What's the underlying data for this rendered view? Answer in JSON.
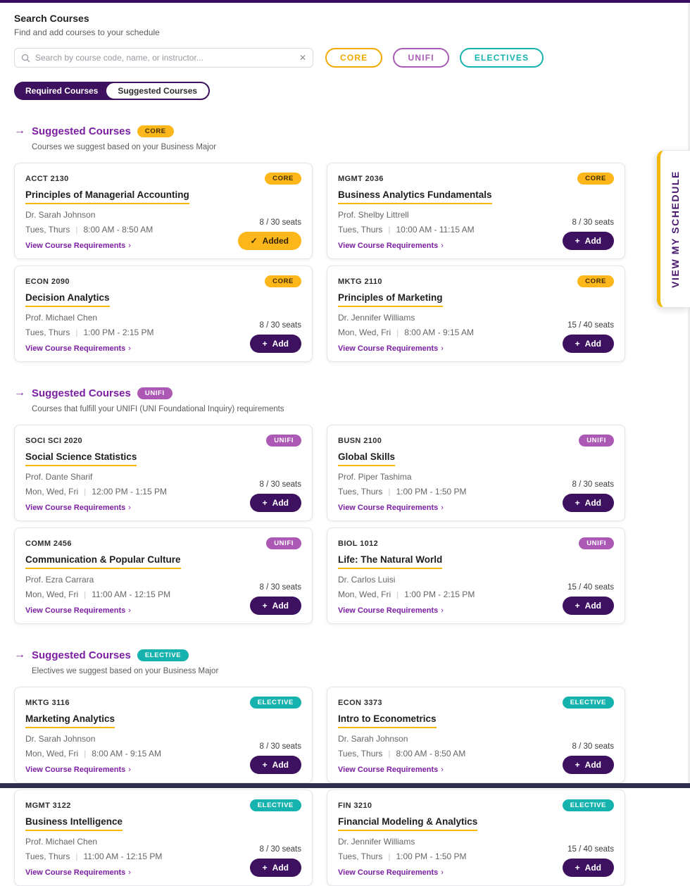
{
  "header": {
    "title": "Search Courses",
    "subtitle": "Find and add courses to your schedule"
  },
  "search": {
    "placeholder": "Search by course code, name, or instructor...",
    "clear_icon": "✕"
  },
  "filters": [
    {
      "id": "core",
      "label": "CORE",
      "color": "#F2A900"
    },
    {
      "id": "unifi",
      "label": "UNIFI",
      "color": "#A85CB5"
    },
    {
      "id": "electives",
      "label": "ELECTIVES",
      "color": "#16B3AE"
    }
  ],
  "tabs": [
    {
      "id": "required",
      "label": "Required Courses",
      "active": true
    },
    {
      "id": "suggested",
      "label": "Suggested Courses",
      "active": false
    }
  ],
  "schedule_tab": {
    "label": "VIEW MY SCHEDULE"
  },
  "labels": {
    "section_arrow": "→",
    "view_requirements": "View Course Requirements",
    "chevron": "›",
    "divider": "|"
  },
  "colors": {
    "accent_purple": "#3E1060",
    "accent_gold": "#FDB71A",
    "accent_teal": "#16B3AE"
  },
  "sections": [
    {
      "title": "Suggested Courses",
      "badge": "CORE",
      "badge_type": "core",
      "subtitle": "Courses we suggest based on your Business Major",
      "courses": [
        {
          "code": "ACCT 2130",
          "title": "Principles of Managerial Accounting",
          "instructor": "Dr. Sarah Johnson",
          "days": "Tues, Thurs",
          "time": "8:00 AM - 8:50 AM",
          "seats": "8 / 30 seats",
          "button": {
            "label": "Added",
            "icon": "✓",
            "state": "added"
          }
        },
        {
          "code": "MGMT 2036",
          "title": "Business Analytics Fundamentals",
          "instructor": "Prof. Shelby Littrell",
          "days": "Tues, Thurs",
          "time": "10:00 AM - 11:15 AM",
          "seats": "8 / 30 seats",
          "button": {
            "label": "Add",
            "icon": "+",
            "state": "default"
          }
        },
        {
          "code": "ECON 2090",
          "title": "Decision Analytics",
          "instructor": "Prof. Michael Chen",
          "days": "Tues, Thurs",
          "time": "1:00 PM - 2:15 PM",
          "seats": "8 / 30 seats",
          "button": {
            "label": "Add",
            "icon": "+",
            "state": "default"
          }
        },
        {
          "code": "MKTG 2110",
          "title": "Principles of Marketing",
          "instructor": "Dr. Jennifer Williams",
          "days": "Mon, Wed, Fri",
          "time": "8:00 AM - 9:15 AM",
          "seats": "15 / 40 seats",
          "button": {
            "label": "Add",
            "icon": "+",
            "state": "default"
          }
        }
      ]
    },
    {
      "title": "Suggested Courses",
      "badge": "UNIFI",
      "badge_type": "unifi",
      "subtitle": "Courses that fulfill your UNIFI (UNI Foundational Inquiry) requirements",
      "courses": [
        {
          "code": "SOCI SCI 2020",
          "title": "Social Science Statistics",
          "instructor": "Prof. Dante Sharif",
          "days": "Mon, Wed, Fri",
          "time": "12:00 PM - 1:15 PM",
          "seats": "8 / 30 seats",
          "button": {
            "label": "Add",
            "icon": "+",
            "state": "default"
          }
        },
        {
          "code": "BUSN 2100",
          "title": "Global Skills",
          "instructor": "Prof. Piper Tashima",
          "days": "Tues, Thurs",
          "time": "1:00 PM - 1:50 PM",
          "seats": "8 / 30 seats",
          "button": {
            "label": "Add",
            "icon": "+",
            "state": "default"
          }
        },
        {
          "code": "COMM 2456",
          "title": "Communication & Popular Culture",
          "instructor": "Prof. Ezra Carrara",
          "days": "Mon, Wed, Fri",
          "time": "11:00 AM - 12:15 PM",
          "seats": "8 / 30 seats",
          "button": {
            "label": "Add",
            "icon": "+",
            "state": "default"
          }
        },
        {
          "code": "BIOL 1012",
          "title": "Life: The Natural World",
          "instructor": "Dr. Carlos Luisi",
          "days": "Mon, Wed, Fri",
          "time": "1:00 PM - 2:15 PM",
          "seats": "15 / 40 seats",
          "button": {
            "label": "Add",
            "icon": "+",
            "state": "default"
          }
        }
      ]
    },
    {
      "title": "Suggested Courses",
      "badge": "ELECTIVE",
      "badge_type": "elective",
      "subtitle": "Electives we suggest based on your Business Major",
      "courses": [
        {
          "code": "MKTG 3116",
          "title": "Marketing Analytics",
          "instructor": "Dr. Sarah Johnson",
          "days": "Mon, Wed, Fri",
          "time": "8:00 AM - 9:15 AM",
          "seats": "8 / 30 seats",
          "button": {
            "label": "Add",
            "icon": "+",
            "state": "default"
          }
        },
        {
          "code": "ECON 3373",
          "title": "Intro to Econometrics",
          "instructor": "Dr. Sarah Johnson",
          "days": "Tues, Thurs",
          "time": "8:00 AM - 8:50 AM",
          "seats": "8 / 30 seats",
          "button": {
            "label": "Add",
            "icon": "+",
            "state": "default"
          }
        },
        {
          "code": "MGMT 3122",
          "title": "Business Intelligence",
          "instructor": "Prof. Michael Chen",
          "days": "Tues, Thurs",
          "time": "11:00 AM - 12:15 PM",
          "seats": "8 / 30 seats",
          "button": {
            "label": "Add",
            "icon": "+",
            "state": "default"
          }
        },
        {
          "code": "FIN 3210",
          "title": "Financial Modeling & Analytics",
          "instructor": "Dr. Jennifer Williams",
          "days": "Tues, Thurs",
          "time": "1:00 PM - 1:50 PM",
          "seats": "15 / 40 seats",
          "button": {
            "label": "Add",
            "icon": "+",
            "state": "default"
          }
        }
      ]
    }
  ]
}
